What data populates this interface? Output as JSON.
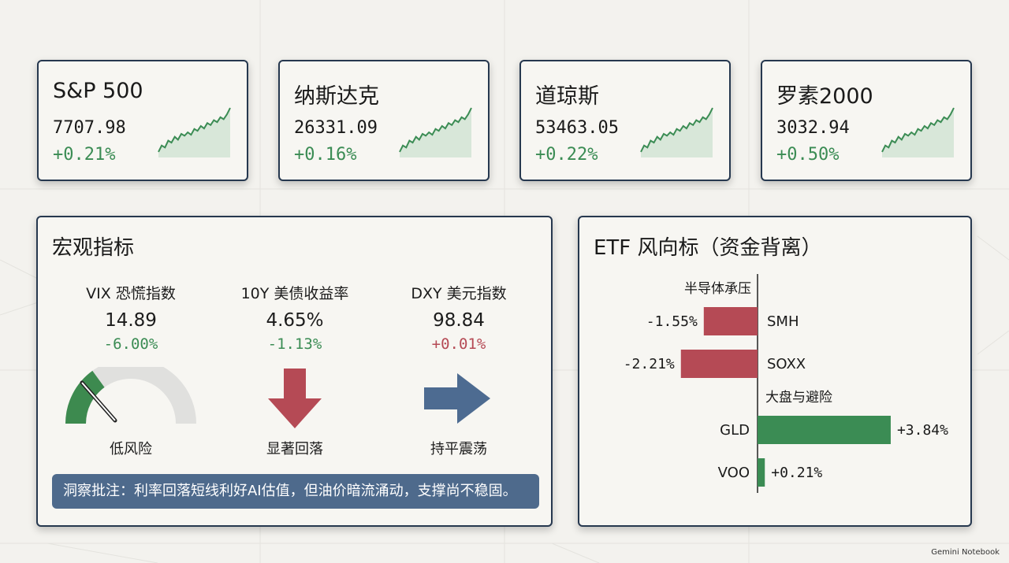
{
  "indices": [
    {
      "name": "S&P 500",
      "value": "7707.98",
      "change": "+0.21%"
    },
    {
      "name": "纳斯达克",
      "value": "26331.09",
      "change": "+0.16%"
    },
    {
      "name": "道琼斯",
      "value": "53463.05",
      "change": "+0.22%"
    },
    {
      "name": "罗素2000",
      "value": "3032.94",
      "change": "+0.50%"
    }
  ],
  "macro": {
    "title": "宏观指标",
    "items": [
      {
        "label": "VIX 恐慌指数",
        "value": "14.89",
        "change": "-6.00%",
        "caption": "低风险",
        "visual": "gauge-icon",
        "gauge_level": 0.3
      },
      {
        "label": "10Y 美债收益率",
        "value": "4.65%",
        "change": "-1.13%",
        "caption": "显著回落",
        "visual": "arrow-down-icon"
      },
      {
        "label": "DXY 美元指数",
        "value": "98.84",
        "change": "+0.01%",
        "caption": "持平震荡",
        "visual": "arrow-right-icon"
      }
    ],
    "note": "洞察批注：利率回落短线利好AI估值，但油价暗流涌动，支撑尚不稳固。"
  },
  "etf": {
    "title": "ETF 风向标（资金背离）"
  },
  "colors": {
    "positive": "#3b8c54",
    "negative": "#b54a55",
    "gauge_low": "#3d8a4f",
    "arrow_down": "#b54a55",
    "arrow_right": "#4d6b91",
    "note_bg": "#4e6a8c",
    "border": "#26384f"
  },
  "chart_data": {
    "type": "bar",
    "orientation": "horizontal",
    "title": "ETF 风向标（资金背离）",
    "groups": [
      {
        "name": "半导体承压",
        "items": [
          {
            "label": "SMH",
            "value": -1.55,
            "text": "-1.55%"
          },
          {
            "label": "SOXX",
            "value": -2.21,
            "text": "-2.21%"
          }
        ]
      },
      {
        "name": "大盘与避险",
        "items": [
          {
            "label": "GLD",
            "value": 3.84,
            "text": "+3.84%"
          },
          {
            "label": "VOO",
            "value": 0.21,
            "text": "+0.21%"
          }
        ]
      }
    ],
    "unit": "%"
  },
  "watermark": "Gemini Notebook"
}
